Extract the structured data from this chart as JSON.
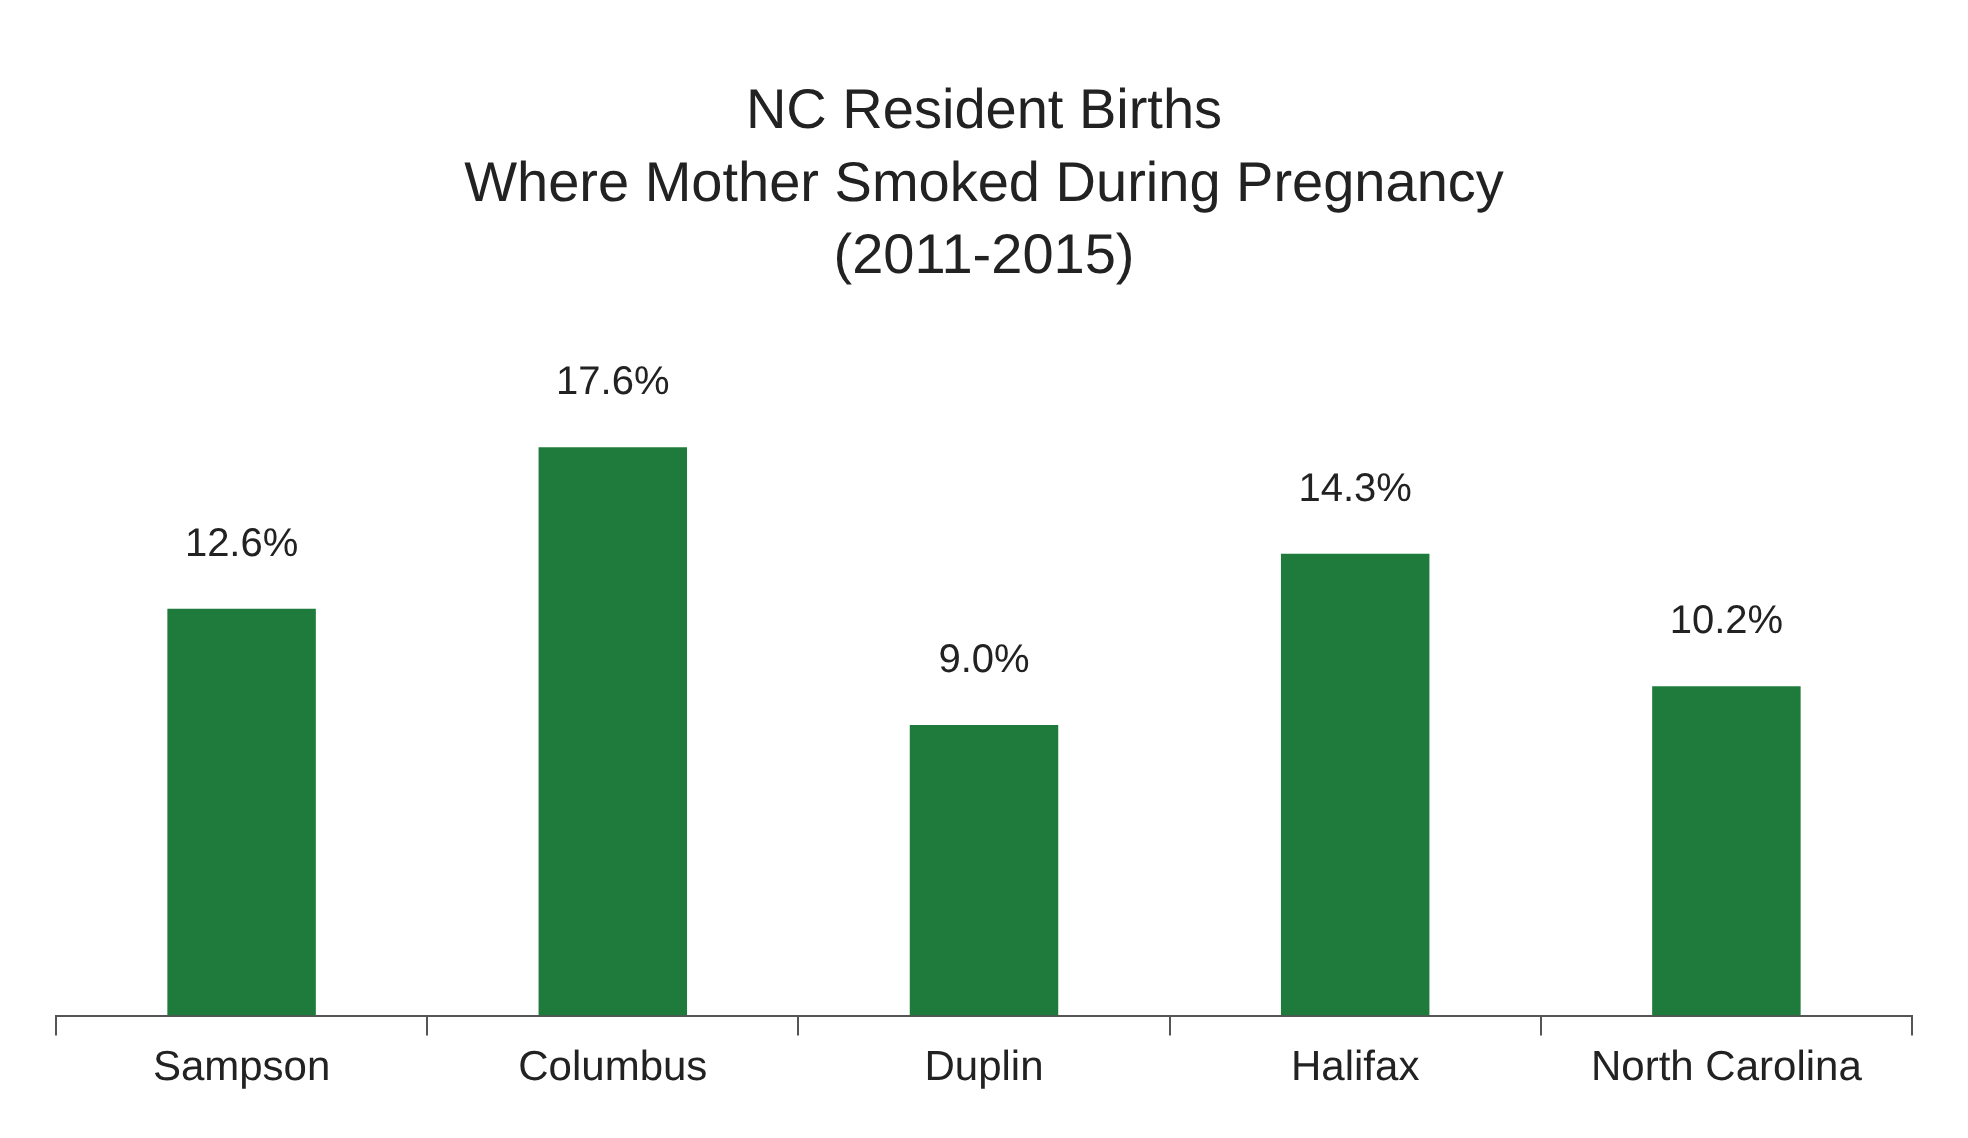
{
  "chart_data": {
    "type": "bar",
    "title": "NC Resident Births\nWhere Mother Smoked During Pregnancy\n(2011-2015)",
    "categories": [
      "Sampson",
      "Columbus",
      "Duplin",
      "Halifax",
      "North Carolina"
    ],
    "values": [
      12.6,
      17.6,
      9.0,
      14.3,
      10.2
    ],
    "value_labels": [
      "12.6%",
      "17.6%",
      "9.0%",
      "14.3%",
      "10.2%"
    ],
    "color": "#1e7b3c",
    "grid": false,
    "legend": false
  }
}
